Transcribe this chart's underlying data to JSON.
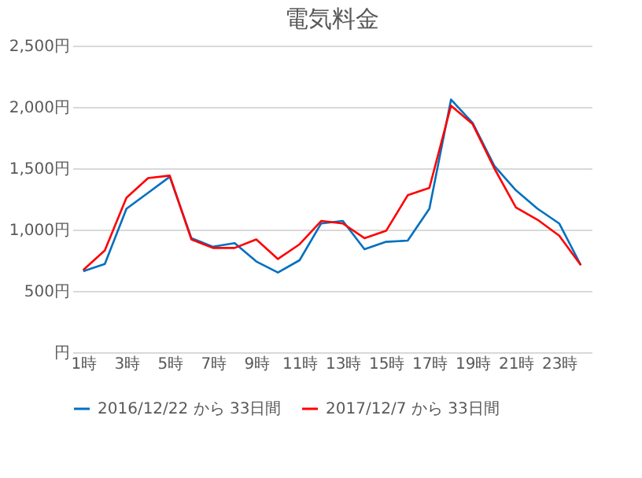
{
  "chart_data": {
    "type": "line",
    "title": "電気料金",
    "categories": [
      "1時",
      null,
      "3時",
      null,
      "5時",
      null,
      "7時",
      null,
      "9時",
      null,
      "11時",
      null,
      "13時",
      null,
      "15時",
      null,
      "17時",
      null,
      "19時",
      null,
      "21時",
      null,
      "23時",
      null
    ],
    "series": [
      {
        "name": "2016/12/22 から 33日間",
        "color": "#0070c0",
        "values": [
          660,
          720,
          1170,
          1300,
          1430,
          930,
          860,
          890,
          740,
          650,
          750,
          1050,
          1070,
          840,
          900,
          910,
          1170,
          2060,
          1870,
          1520,
          1320,
          1170,
          1050,
          710
        ]
      },
      {
        "name": "2017/12/7 から 33日間",
        "color": "#ff0000",
        "values": [
          670,
          830,
          1260,
          1420,
          1440,
          920,
          850,
          850,
          920,
          760,
          880,
          1070,
          1050,
          930,
          990,
          1280,
          1340,
          2010,
          1860,
          1500,
          1180,
          1080,
          950,
          710
        ]
      }
    ],
    "ylim": [
      0,
      2500
    ],
    "yticks": [
      {
        "value": 0,
        "label": "円"
      },
      {
        "value": 500,
        "label": "500円"
      },
      {
        "value": 1000,
        "label": "1,000円"
      },
      {
        "value": 1500,
        "label": "1,500円"
      },
      {
        "value": 2000,
        "label": "2,000円"
      },
      {
        "value": 2500,
        "label": "2,500円"
      }
    ],
    "grid": "y",
    "legend": "bottom",
    "marker": "none",
    "line_style": "solid"
  }
}
